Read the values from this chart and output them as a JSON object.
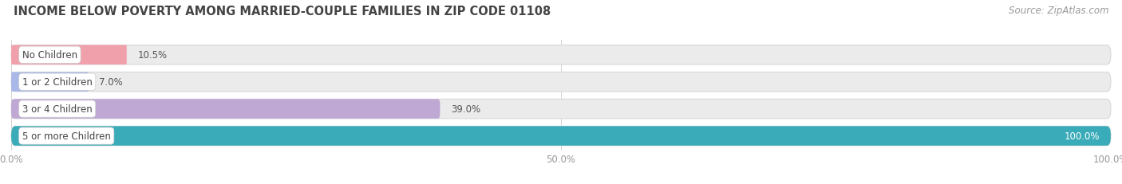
{
  "title": "INCOME BELOW POVERTY AMONG MARRIED-COUPLE FAMILIES IN ZIP CODE 01108",
  "source": "Source: ZipAtlas.com",
  "categories": [
    "No Children",
    "1 or 2 Children",
    "3 or 4 Children",
    "5 or more Children"
  ],
  "values": [
    10.5,
    7.0,
    39.0,
    100.0
  ],
  "bar_colors": [
    "#f0a0aa",
    "#aab8e8",
    "#bfa8d4",
    "#3aabb8"
  ],
  "bar_bg_color": "#ebebeb",
  "tick_label_color": "#999999",
  "title_color": "#444444",
  "source_color": "#999999",
  "xlim": [
    0,
    100
  ],
  "xticks": [
    0,
    50,
    100
  ],
  "xticklabels": [
    "0.0%",
    "50.0%",
    "100.0%"
  ],
  "bar_height": 0.72,
  "bar_gap": 1.0,
  "background_color": "#ffffff",
  "title_fontsize": 10.5,
  "label_fontsize": 8.5,
  "tick_fontsize": 8.5,
  "source_fontsize": 8.5,
  "value_label_color_dark": "#555555",
  "value_label_color_light": "#ffffff"
}
